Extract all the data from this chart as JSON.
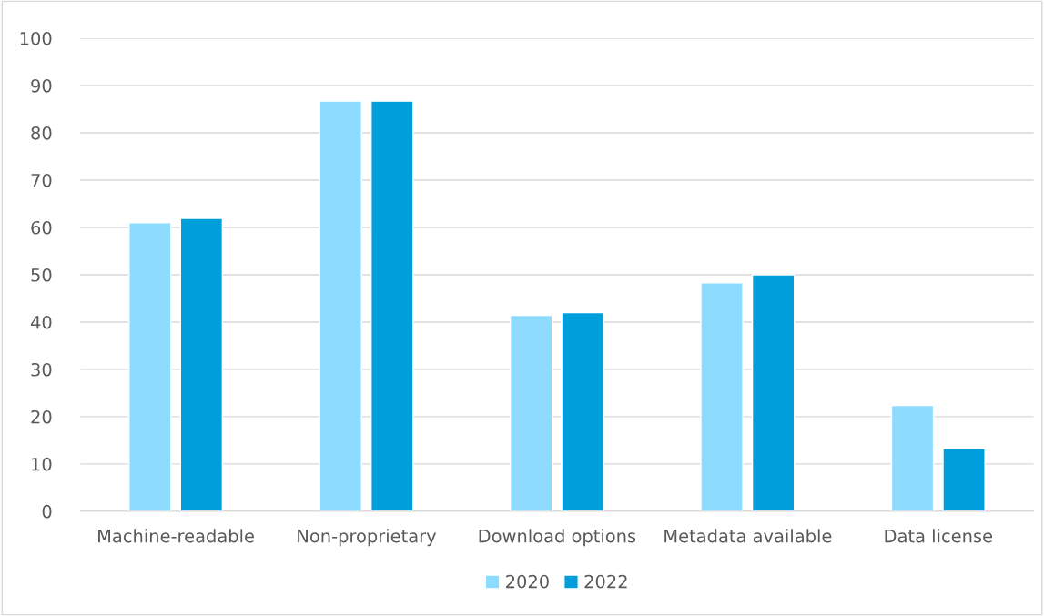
{
  "chart_data": {
    "type": "bar",
    "categories": [
      "Machine-readable",
      "Non-proprietary",
      "Download options",
      "Metadata available",
      "Data license"
    ],
    "series": [
      {
        "name": "2020",
        "color": "#8ddcff",
        "values": [
          61.0,
          86.7,
          41.4,
          48.3,
          22.4
        ]
      },
      {
        "name": "2022",
        "color": "#009fdb",
        "values": [
          61.9,
          86.7,
          42.0,
          50.0,
          13.3
        ]
      }
    ],
    "ylim": [
      0,
      100
    ],
    "yticks": [
      0,
      10,
      20,
      30,
      40,
      50,
      60,
      70,
      80,
      90,
      100
    ],
    "grid": "y",
    "legend": "bottom"
  }
}
